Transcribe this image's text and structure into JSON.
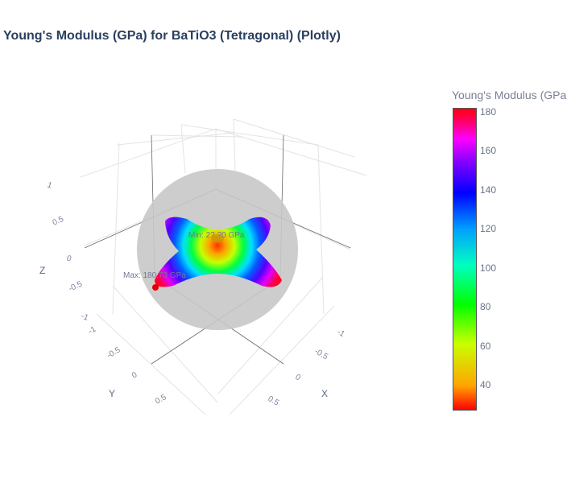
{
  "title": "Young's Modulus (GPa) for BaTiO3 (Tetragonal) (Plotly)",
  "chart_data": {
    "type": "surface3d",
    "title": "Young's Modulus (GPa) for BaTiO3 (Tetragonal) (Plotly)",
    "axes": {
      "x": {
        "label": "X",
        "ticks": [
          "-1",
          "-0.5",
          "0",
          "0.5"
        ]
      },
      "y": {
        "label": "Y",
        "ticks": [
          "-1",
          "-0.5",
          "0",
          "0.5"
        ]
      },
      "z": {
        "label": "Z",
        "ticks": [
          "-1",
          "-0.5",
          "0",
          "0.5",
          "1"
        ]
      }
    },
    "reference_sphere": {
      "color": "#bdbdbd"
    },
    "annotations": [
      {
        "text": "Min: 2?.?0 GPa",
        "role": "min"
      },
      {
        "text": "Max: 180.73 GPa",
        "role": "max"
      }
    ],
    "colorbar": {
      "title": "Young's Modulus (GPa",
      "ticks": [
        "180",
        "160",
        "140",
        "120",
        "100",
        "80",
        "60",
        "40"
      ],
      "tick_values": [
        180,
        160,
        140,
        120,
        100,
        80,
        60,
        40
      ],
      "range": [
        27,
        182
      ],
      "colorscale": "hsv"
    },
    "grid": true
  }
}
